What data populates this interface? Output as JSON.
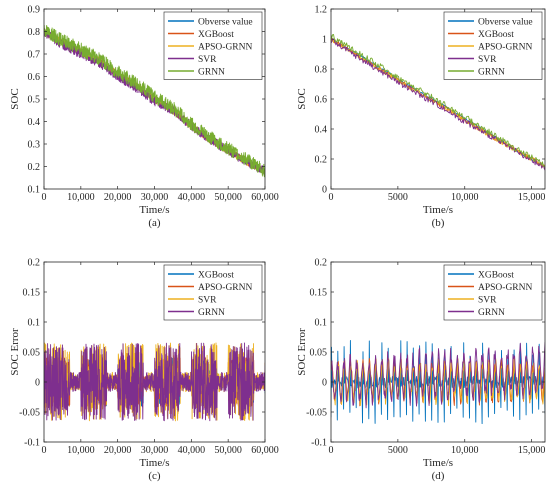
{
  "colors": {
    "observe": "#0072BD",
    "xgboost_ab": "#D95319",
    "xgboost_cd": "#0072BD",
    "apso": "#EDB120",
    "svr": "#7E2F8E",
    "grnn": "#77AC30",
    "axis": "#262626"
  },
  "chart_data": [
    {
      "panel": "(a)",
      "type": "line",
      "xlabel": "Time/s",
      "ylabel": "SOC",
      "xlim": [
        0,
        60000
      ],
      "ylim": [
        0.1,
        0.9
      ],
      "xticks": [
        0,
        10000,
        20000,
        30000,
        40000,
        50000,
        60000
      ],
      "xtick_labels": [
        "0",
        "10,000",
        "20,000",
        "30,000",
        "40,000",
        "50,000",
        "60,000"
      ],
      "yticks": [
        0.1,
        0.2,
        0.3,
        0.4,
        0.5,
        0.6,
        0.7,
        0.8,
        0.9
      ],
      "ytick_labels": [
        "0.1",
        "0.2",
        "0.3",
        "0.4",
        "0.5",
        "0.6",
        "0.7",
        "0.8",
        "0.9"
      ],
      "legend": "top-right",
      "series": [
        {
          "name": "Obverse value",
          "color": "#0072BD",
          "x": [
            0,
            5000,
            10000,
            15000,
            20000,
            25000,
            30000,
            35000,
            40000,
            45000,
            50000,
            55000,
            60000
          ],
          "y": [
            0.8,
            0.75,
            0.71,
            0.67,
            0.61,
            0.56,
            0.5,
            0.45,
            0.38,
            0.32,
            0.27,
            0.22,
            0.18
          ],
          "noise": 0.01
        },
        {
          "name": "XGBoost",
          "color": "#D95319",
          "x": [
            0,
            5000,
            10000,
            15000,
            20000,
            25000,
            30000,
            35000,
            40000,
            45000,
            50000,
            55000,
            60000
          ],
          "y": [
            0.8,
            0.75,
            0.71,
            0.67,
            0.61,
            0.56,
            0.5,
            0.45,
            0.38,
            0.32,
            0.27,
            0.22,
            0.18
          ],
          "noise": 0.015
        },
        {
          "name": "APSO-GRNN",
          "color": "#EDB120",
          "x": [
            0,
            5000,
            10000,
            15000,
            20000,
            25000,
            30000,
            35000,
            40000,
            45000,
            50000,
            55000,
            60000
          ],
          "y": [
            0.8,
            0.75,
            0.71,
            0.67,
            0.61,
            0.56,
            0.5,
            0.45,
            0.38,
            0.32,
            0.27,
            0.22,
            0.18
          ],
          "noise": 0.015
        },
        {
          "name": "SVR",
          "color": "#7E2F8E",
          "x": [
            0,
            5000,
            10000,
            15000,
            20000,
            25000,
            30000,
            35000,
            40000,
            45000,
            50000,
            55000,
            60000
          ],
          "y": [
            0.8,
            0.74,
            0.7,
            0.66,
            0.6,
            0.55,
            0.49,
            0.45,
            0.38,
            0.32,
            0.27,
            0.22,
            0.18
          ],
          "noise": 0.02
        },
        {
          "name": "GRNN",
          "color": "#77AC30",
          "x": [
            0,
            5000,
            10000,
            15000,
            20000,
            25000,
            30000,
            35000,
            40000,
            45000,
            50000,
            55000,
            60000
          ],
          "y": [
            0.81,
            0.76,
            0.72,
            0.68,
            0.62,
            0.57,
            0.51,
            0.46,
            0.39,
            0.33,
            0.28,
            0.23,
            0.18
          ],
          "noise": 0.03
        }
      ]
    },
    {
      "panel": "(b)",
      "type": "line",
      "xlabel": "Time/s",
      "ylabel": "SOC",
      "xlim": [
        0,
        16000
      ],
      "ylim": [
        0,
        1.2
      ],
      "xticks": [
        0,
        5000,
        10000,
        15000
      ],
      "xtick_labels": [
        "0",
        "5000",
        "10,000",
        "15,000"
      ],
      "yticks": [
        0,
        0.2,
        0.4,
        0.6,
        0.8,
        1.0,
        1.2
      ],
      "ytick_labels": [
        "0",
        "0.2",
        "0.4",
        "0.6",
        "0.8",
        "1",
        "1.2"
      ],
      "legend": "top-right",
      "series": [
        {
          "name": "Obverse value",
          "color": "#0072BD",
          "x": [
            0,
            2000,
            4000,
            6000,
            8000,
            10000,
            12000,
            14000,
            16000
          ],
          "y": [
            1.0,
            0.9,
            0.79,
            0.68,
            0.58,
            0.47,
            0.36,
            0.25,
            0.15
          ],
          "noise": 0.008
        },
        {
          "name": "XGBoost",
          "color": "#D95319",
          "x": [
            0,
            2000,
            4000,
            6000,
            8000,
            10000,
            12000,
            14000,
            16000
          ],
          "y": [
            1.0,
            0.89,
            0.78,
            0.67,
            0.57,
            0.46,
            0.35,
            0.25,
            0.15
          ],
          "noise": 0.015
        },
        {
          "name": "APSO-GRNN",
          "color": "#EDB120",
          "x": [
            0,
            2000,
            4000,
            6000,
            8000,
            10000,
            12000,
            14000,
            16000
          ],
          "y": [
            1.0,
            0.89,
            0.78,
            0.67,
            0.57,
            0.46,
            0.35,
            0.25,
            0.15
          ],
          "noise": 0.015
        },
        {
          "name": "SVR",
          "color": "#7E2F8E",
          "x": [
            0,
            2000,
            4000,
            6000,
            8000,
            10000,
            12000,
            14000,
            16000
          ],
          "y": [
            0.99,
            0.88,
            0.77,
            0.66,
            0.56,
            0.45,
            0.35,
            0.24,
            0.14
          ],
          "noise": 0.02
        },
        {
          "name": "GRNN",
          "color": "#77AC30",
          "x": [
            0,
            2000,
            4000,
            6000,
            8000,
            10000,
            12000,
            14000,
            16000
          ],
          "y": [
            1.02,
            0.91,
            0.8,
            0.69,
            0.59,
            0.48,
            0.37,
            0.26,
            0.16
          ],
          "noise": 0.02
        }
      ]
    },
    {
      "panel": "(c)",
      "type": "line",
      "xlabel": "Time/s",
      "ylabel": "SOC Error",
      "xlim": [
        0,
        60000
      ],
      "ylim": [
        -0.1,
        0.2
      ],
      "xticks": [
        0,
        10000,
        20000,
        30000,
        40000,
        50000,
        60000
      ],
      "xtick_labels": [
        "0",
        "10,000",
        "20,000",
        "30,000",
        "40,000",
        "50,000",
        "60,000"
      ],
      "yticks": [
        -0.1,
        -0.05,
        0,
        0.05,
        0.1,
        0.15,
        0.2
      ],
      "ytick_labels": [
        "-0.1",
        "-0.05",
        "0",
        "0.05",
        "0.1",
        "0.15",
        "0.2"
      ],
      "legend": "top-right",
      "series": [
        {
          "name": "XGBoost",
          "color": "#0072BD",
          "amplitude": 0.04
        },
        {
          "name": "APSO-GRNN",
          "color": "#D95319",
          "amplitude": 0.045
        },
        {
          "name": "SVR",
          "color": "#EDB120",
          "amplitude": 0.065
        },
        {
          "name": "GRNN",
          "color": "#7E2F8E",
          "amplitude": 0.065
        }
      ]
    },
    {
      "panel": "(d)",
      "type": "line",
      "xlabel": "Time/s",
      "ylabel": "SOC Error",
      "xlim": [
        0,
        16000
      ],
      "ylim": [
        -0.1,
        0.2
      ],
      "xticks": [
        0,
        5000,
        10000,
        15000
      ],
      "xtick_labels": [
        "0",
        "5000",
        "10,000",
        "15,000"
      ],
      "yticks": [
        -0.1,
        -0.05,
        0,
        0.05,
        0.1,
        0.15,
        0.2
      ],
      "ytick_labels": [
        "-0.1",
        "-0.05",
        "0",
        "0.05",
        "0.1",
        "0.15",
        "0.2"
      ],
      "legend": "top-right",
      "series": [
        {
          "name": "XGBoost",
          "color": "#0072BD",
          "peak_min": -0.07,
          "peak_max": 0.07
        },
        {
          "name": "APSO-GRNN",
          "color": "#D95319",
          "peak_min": -0.04,
          "peak_max": 0.04
        },
        {
          "name": "SVR",
          "color": "#EDB120",
          "peak_min": -0.03,
          "peak_max": 0.04
        },
        {
          "name": "GRNN",
          "color": "#7E2F8E",
          "peak_min": -0.04,
          "peak_max": 0.05
        }
      ]
    }
  ]
}
